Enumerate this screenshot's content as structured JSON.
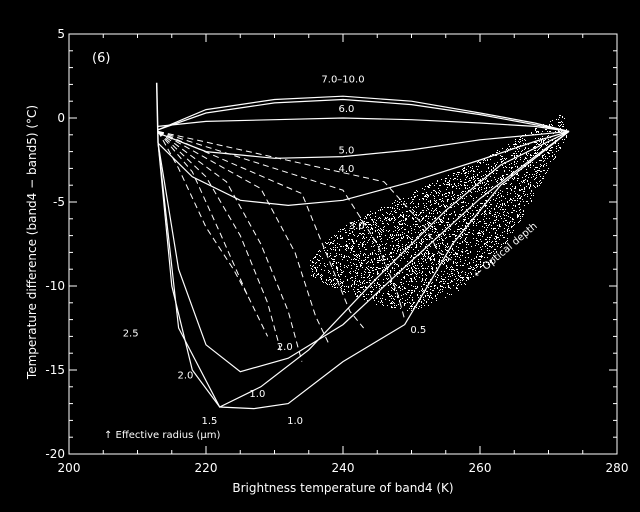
{
  "chart_data": {
    "type": "line",
    "panel_label": "(6)",
    "xlabel": "Brightness temperature of band4 (K)",
    "ylabel": "Temperature difference (band4 − band5) (°C)",
    "xlim": [
      200,
      280
    ],
    "ylim": [
      -20,
      5
    ],
    "xticks": [
      200,
      220,
      240,
      260,
      280
    ],
    "yticks": [
      5,
      0,
      -5,
      -10,
      -15,
      -20
    ],
    "xtick_labels": [
      "200",
      "220",
      "240",
      "260",
      "280"
    ],
    "ytick_labels": [
      "5",
      "0",
      "-5",
      "-10",
      "-15",
      "-20"
    ],
    "grid": false,
    "colors": {
      "background": "#000000",
      "foreground": "#ffffff"
    },
    "annotations": [
      {
        "text": "7.0–10.0",
        "x": 240,
        "y": 2.1
      },
      {
        "text": "6.0",
        "x": 240.5,
        "y": 0.35
      },
      {
        "text": "5.0",
        "x": 240.5,
        "y": -2.1
      },
      {
        "text": "4.0",
        "x": 240.5,
        "y": -3.2
      },
      {
        "text": "3.0",
        "x": 242,
        "y": -6.6
      },
      {
        "text": "2.5",
        "x": 209,
        "y": -13.0
      },
      {
        "text": "2.0",
        "x": 217,
        "y": -15.5
      },
      {
        "text": "2.0",
        "x": 231.5,
        "y": -13.8
      },
      {
        "text": "1.0",
        "x": 227.5,
        "y": -16.6
      },
      {
        "text": "1.5",
        "x": 220.5,
        "y": -18.2
      },
      {
        "text": "1.0",
        "x": 233,
        "y": -18.2
      },
      {
        "text": "0.5",
        "x": 251,
        "y": -12.8
      }
    ],
    "optical_depth_label": {
      "text": "← Optical depth",
      "x": 264,
      "y": -8.0,
      "angle": -40
    },
    "effective_radius_label": "↑ Effective radius (μm)",
    "radius_curves": [
      {
        "name": "7.0–10.0",
        "x": [
          213,
          220,
          230,
          240,
          250,
          260,
          268,
          273
        ],
        "y": [
          -0.7,
          0.5,
          1.1,
          1.3,
          1.0,
          0.3,
          -0.3,
          -0.8
        ]
      },
      {
        "name": "7.0–10.0 b",
        "x": [
          213,
          220,
          230,
          240,
          250,
          260,
          268,
          273
        ],
        "y": [
          -0.7,
          0.3,
          0.9,
          1.1,
          0.8,
          0.2,
          -0.4,
          -0.8
        ]
      },
      {
        "name": "6.0",
        "x": [
          213,
          220,
          230,
          240,
          250,
          260,
          268,
          273
        ],
        "y": [
          -0.5,
          -0.2,
          -0.1,
          0.0,
          -0.1,
          -0.3,
          -0.5,
          -0.8
        ]
      },
      {
        "name": "5.0",
        "x": [
          213,
          220,
          230,
          240,
          250,
          260,
          268,
          273
        ],
        "y": [
          -0.9,
          -2.0,
          -2.4,
          -2.3,
          -1.9,
          -1.3,
          -1.0,
          -0.8
        ]
      },
      {
        "name": "4.0",
        "x": [
          213,
          218,
          225,
          232,
          240,
          250,
          260,
          268,
          273
        ],
        "y": [
          -1.5,
          -3.5,
          -4.9,
          -5.2,
          -4.9,
          -3.8,
          -2.5,
          -1.4,
          -0.8
        ]
      },
      {
        "name": "3.0",
        "x": [
          213,
          216,
          220,
          225,
          232,
          240,
          250,
          260,
          268,
          273
        ],
        "y": [
          -1.5,
          -9.0,
          -13.5,
          -15.1,
          -14.3,
          -12.3,
          -8.5,
          -4.8,
          -2.3,
          -0.8
        ]
      },
      {
        "name": "2.5",
        "x": [
          213,
          215,
          218,
          222,
          228,
          235,
          245,
          255,
          263,
          273
        ],
        "y": [
          -1.5,
          -10.0,
          -15.0,
          -17.2,
          -16.0,
          -13.8,
          -9.5,
          -5.5,
          -2.8,
          -0.8
        ]
      },
      {
        "name": "1.0",
        "x": [
          213,
          216,
          222,
          227,
          232,
          240,
          249,
          256,
          263,
          273
        ],
        "y": [
          -1.5,
          -12.5,
          -17.2,
          -17.3,
          -17.0,
          -14.5,
          -12.3,
          -7.5,
          -4.0,
          -0.8
        ]
      }
    ],
    "optical_depth_curves": [
      {
        "x": [
          213,
          216,
          220,
          224,
          226
        ],
        "y": [
          -0.8,
          -3.0,
          -6.5,
          -9.0,
          -10.5
        ]
      },
      {
        "x": [
          213,
          218,
          222,
          226,
          229
        ],
        "y": [
          -0.8,
          -3.2,
          -6.8,
          -10.5,
          -13.0
        ]
      },
      {
        "x": [
          213,
          220,
          225,
          229,
          231
        ],
        "y": [
          -0.8,
          -3.5,
          -7.0,
          -11.0,
          -14.0
        ]
      },
      {
        "x": [
          213,
          223,
          228,
          232,
          234
        ],
        "y": [
          -0.8,
          -3.8,
          -7.5,
          -11.5,
          -14.5
        ]
      },
      {
        "x": [
          213,
          228,
          233,
          236,
          238
        ],
        "y": [
          -0.8,
          -4.2,
          -8.0,
          -11.8,
          -13.5
        ]
      },
      {
        "x": [
          213,
          234,
          238,
          241,
          243
        ],
        "y": [
          -0.8,
          -4.5,
          -8.5,
          -11.5,
          -12.5
        ]
      },
      {
        "x": [
          213,
          240,
          245,
          248,
          249
        ],
        "y": [
          -0.8,
          -4.3,
          -7.5,
          -10.5,
          -12.0
        ]
      },
      {
        "x": [
          213,
          246,
          252,
          254,
          256
        ],
        "y": [
          -0.8,
          -3.8,
          -6.5,
          -8.0,
          -8.5
        ]
      }
    ],
    "scatter_region": {
      "polygon": [
        [
          235,
          -8.5
        ],
        [
          238,
          -7.0
        ],
        [
          244,
          -5.5
        ],
        [
          252,
          -4.0
        ],
        [
          260,
          -2.5
        ],
        [
          266,
          -1.0
        ],
        [
          272,
          0.3
        ],
        [
          273,
          -0.8
        ],
        [
          270,
          -3.0
        ],
        [
          266,
          -6.0
        ],
        [
          262,
          -8.5
        ],
        [
          256,
          -10.5
        ],
        [
          250,
          -11.5
        ],
        [
          244,
          -11.0
        ],
        [
          238,
          -10.0
        ],
        [
          235,
          -9.3
        ]
      ],
      "count": 3500,
      "color": "#ffffff"
    }
  }
}
